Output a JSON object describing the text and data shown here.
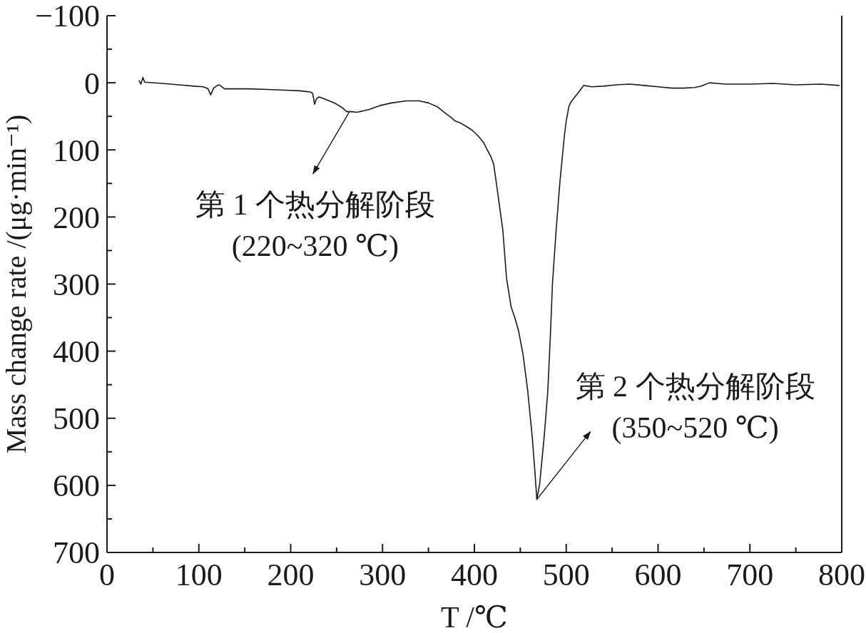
{
  "chart_data": {
    "type": "line",
    "xlabel": "T /℃",
    "ylabel": "Mass change rate /(μg·min⁻¹)",
    "xlim": [
      0,
      800
    ],
    "xticks": [
      0,
      {
        "value": 50,
        "label": null
      },
      100,
      {
        "value": 150,
        "label": null
      },
      200,
      {
        "value": 250,
        "label": null
      },
      300,
      {
        "value": 350,
        "label": null
      },
      400,
      {
        "value": 450,
        "label": null
      },
      500,
      {
        "value": 550,
        "label": null
      },
      600,
      {
        "value": 650,
        "label": null
      },
      700,
      {
        "value": 750,
        "label": null
      },
      800
    ],
    "ylim": [
      700,
      -100
    ],
    "yticks": [
      -100,
      {
        "value": -50,
        "label": null
      },
      0,
      {
        "value": 50,
        "label": null
      },
      100,
      {
        "value": 150,
        "label": null
      },
      200,
      {
        "value": 250,
        "label": null
      },
      300,
      {
        "value": 350,
        "label": null
      },
      400,
      {
        "value": 450,
        "label": null
      },
      500,
      {
        "value": 550,
        "label": null
      },
      600,
      {
        "value": 650,
        "label": null
      },
      700
    ],
    "x": [
      35,
      37,
      39,
      41,
      60,
      78,
      95,
      105,
      110,
      113,
      116,
      119,
      122,
      128,
      155,
      175,
      194,
      210,
      217,
      222,
      224,
      226,
      228,
      231,
      240,
      249,
      256,
      261,
      266,
      272,
      285,
      297,
      310,
      326,
      340,
      350,
      360,
      370,
      375,
      379,
      385,
      391,
      398,
      404,
      410,
      414,
      418,
      421,
      425,
      428,
      431,
      435,
      440,
      444,
      448,
      453,
      458,
      463,
      466,
      468,
      471,
      476,
      480,
      483,
      485,
      489,
      493,
      498,
      500,
      503,
      505,
      510,
      513,
      519,
      528,
      540,
      555,
      569,
      585,
      600,
      615,
      627,
      640,
      647,
      656,
      673,
      700,
      725,
      750,
      777,
      797
    ],
    "series": [
      {
        "color": "#1a1a1a",
        "values": [
          -3,
          2,
          -8,
          -1,
          1,
          3,
          5,
          6,
          9,
          18,
          8,
          5,
          3,
          9,
          9,
          10,
          11,
          12,
          13,
          14,
          16,
          32,
          24,
          21,
          26,
          31,
          37,
          43,
          43,
          44,
          40,
          34,
          30,
          27,
          27,
          30,
          36,
          47,
          52,
          57,
          60,
          65,
          71,
          79,
          89,
          100,
          110,
          121,
          160,
          190,
          220,
          291,
          334,
          350,
          369,
          405,
          458,
          528,
          581,
          621,
          599,
          528,
          458,
          369,
          300,
          220,
          150,
          79,
          57,
          35,
          29,
          20,
          15,
          4,
          6,
          5,
          3,
          2,
          4,
          6,
          8,
          8,
          7,
          5,
          0,
          2,
          2,
          1,
          3,
          2,
          4
        ]
      }
    ],
    "annotations": [
      {
        "text": "第 1 个热分解阶段\n(220~320 ℃)",
        "x": 264,
        "y": 43
      },
      {
        "text": "第 2 个热分解阶段\n(350~520 ℃)",
        "x": 468,
        "y": 621
      }
    ]
  }
}
